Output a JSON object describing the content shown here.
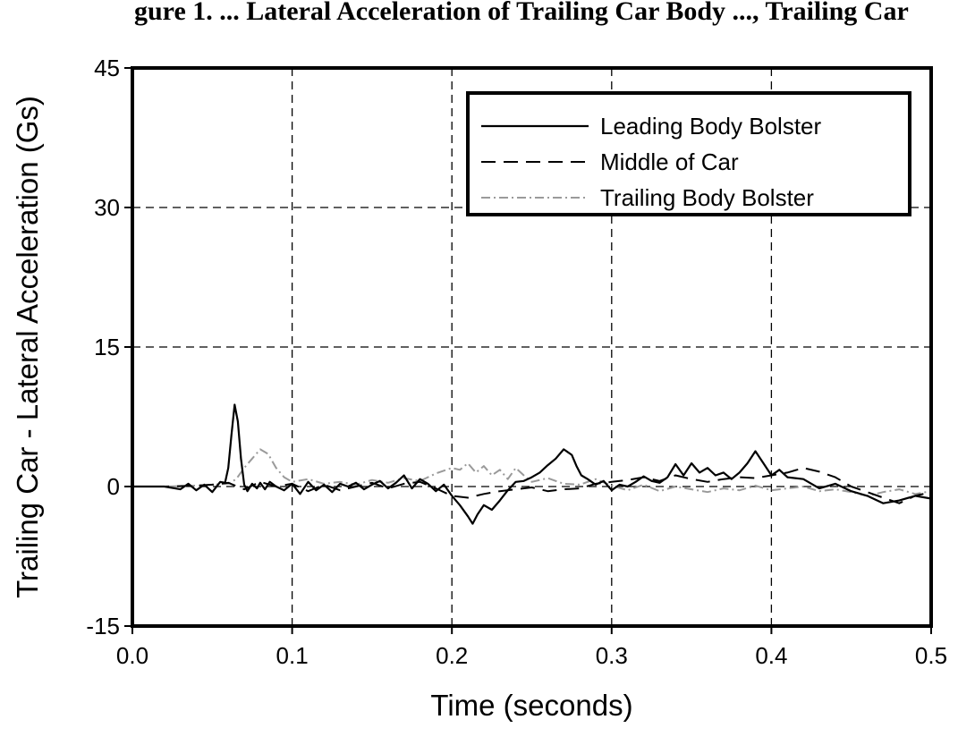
{
  "header_fragment": "gure 1. ... Lateral Acceleration of Trailing Car Body ..., Trailing Car",
  "chart_data": {
    "type": "line",
    "xlabel": "Time (seconds)",
    "ylabel": "Trailing Car - Lateral Acceleration (Gs)",
    "xlim": [
      0,
      0.5
    ],
    "ylim": [
      -15,
      45
    ],
    "xticks": [
      0.0,
      0.1,
      0.2,
      0.3,
      0.4,
      0.5
    ],
    "xtick_labels": [
      "0.0",
      "0.1",
      "0.2",
      "0.3",
      "0.4",
      "0.5"
    ],
    "yticks": [
      -15,
      0,
      15,
      30,
      45
    ],
    "ytick_labels": [
      "-15",
      "0",
      "15",
      "30",
      "45"
    ],
    "grid": "dashed",
    "legend_position": "top-right",
    "series": [
      {
        "name": "Leading Body Bolster",
        "style": "solid",
        "color": "#000000",
        "x": [
          0.0,
          0.02,
          0.03,
          0.035,
          0.04,
          0.045,
          0.05,
          0.055,
          0.058,
          0.06,
          0.062,
          0.064,
          0.066,
          0.068,
          0.07,
          0.072,
          0.075,
          0.078,
          0.08,
          0.083,
          0.086,
          0.09,
          0.095,
          0.1,
          0.105,
          0.11,
          0.115,
          0.12,
          0.125,
          0.13,
          0.135,
          0.14,
          0.145,
          0.15,
          0.155,
          0.16,
          0.165,
          0.17,
          0.175,
          0.18,
          0.185,
          0.19,
          0.195,
          0.2,
          0.205,
          0.21,
          0.213,
          0.216,
          0.22,
          0.225,
          0.23,
          0.235,
          0.24,
          0.245,
          0.25,
          0.255,
          0.26,
          0.265,
          0.27,
          0.275,
          0.278,
          0.281,
          0.285,
          0.29,
          0.295,
          0.3,
          0.305,
          0.31,
          0.315,
          0.32,
          0.325,
          0.33,
          0.335,
          0.34,
          0.345,
          0.35,
          0.355,
          0.36,
          0.365,
          0.37,
          0.375,
          0.38,
          0.385,
          0.39,
          0.395,
          0.4,
          0.405,
          0.41,
          0.42,
          0.43,
          0.44,
          0.45,
          0.46,
          0.47,
          0.48,
          0.49,
          0.5
        ],
        "y": [
          0.0,
          0.0,
          -0.3,
          0.3,
          -0.4,
          0.2,
          -0.6,
          0.5,
          0.4,
          2.0,
          5.5,
          8.8,
          7.0,
          3.0,
          0.2,
          -0.5,
          0.3,
          -0.2,
          0.4,
          -0.3,
          0.5,
          0.0,
          -0.4,
          0.3,
          -0.8,
          0.5,
          -0.4,
          0.2,
          -0.6,
          0.3,
          0.0,
          0.4,
          -0.3,
          0.2,
          0.6,
          -0.2,
          0.4,
          1.2,
          -0.2,
          0.8,
          0.3,
          -0.5,
          0.2,
          -1.0,
          -2.0,
          -3.2,
          -4.0,
          -3.0,
          -2.0,
          -2.5,
          -1.5,
          -0.4,
          0.5,
          0.6,
          1.0,
          1.5,
          2.3,
          3.0,
          4.0,
          3.4,
          2.2,
          1.2,
          0.8,
          0.2,
          0.6,
          -0.4,
          0.2,
          0.0,
          0.5,
          1.1,
          0.6,
          0.4,
          1.0,
          2.4,
          1.2,
          2.5,
          1.5,
          2.0,
          1.2,
          1.5,
          0.8,
          1.5,
          2.5,
          3.8,
          2.5,
          1.2,
          1.8,
          1.0,
          0.8,
          -0.2,
          0.3,
          -0.5,
          -1.0,
          -1.8,
          -1.5,
          -1.0,
          -1.3
        ]
      },
      {
        "name": "Middle of Car",
        "style": "dashed",
        "color": "#000000",
        "x": [
          0.0,
          0.02,
          0.04,
          0.05,
          0.06,
          0.07,
          0.08,
          0.09,
          0.1,
          0.11,
          0.12,
          0.13,
          0.14,
          0.15,
          0.16,
          0.17,
          0.18,
          0.19,
          0.2,
          0.21,
          0.22,
          0.23,
          0.24,
          0.25,
          0.26,
          0.27,
          0.28,
          0.29,
          0.3,
          0.31,
          0.32,
          0.33,
          0.34,
          0.35,
          0.36,
          0.37,
          0.38,
          0.39,
          0.4,
          0.41,
          0.42,
          0.43,
          0.44,
          0.45,
          0.46,
          0.47,
          0.48,
          0.49,
          0.5
        ],
        "y": [
          0.0,
          0.0,
          0.1,
          0.2,
          0.4,
          -0.3,
          0.5,
          0.0,
          0.3,
          -0.5,
          0.2,
          -0.4,
          0.0,
          0.4,
          -0.2,
          0.3,
          0.5,
          -0.2,
          -1.0,
          -1.2,
          -0.8,
          -0.5,
          -0.3,
          -0.1,
          -0.5,
          -0.3,
          -0.2,
          0.3,
          0.5,
          0.7,
          1.0,
          0.6,
          1.2,
          0.8,
          0.5,
          0.8,
          1.0,
          0.9,
          1.2,
          1.5,
          2.0,
          1.6,
          1.0,
          0.0,
          -0.6,
          -1.2,
          -1.8,
          -1.0,
          -0.6
        ]
      },
      {
        "name": "Trailing Body Bolster",
        "style": "dash-dot",
        "color": "#9a9a9a",
        "x": [
          0.0,
          0.02,
          0.04,
          0.05,
          0.06,
          0.065,
          0.07,
          0.075,
          0.08,
          0.085,
          0.09,
          0.095,
          0.1,
          0.11,
          0.12,
          0.13,
          0.14,
          0.15,
          0.16,
          0.17,
          0.18,
          0.19,
          0.2,
          0.205,
          0.21,
          0.215,
          0.22,
          0.225,
          0.23,
          0.235,
          0.24,
          0.245,
          0.25,
          0.26,
          0.27,
          0.28,
          0.29,
          0.3,
          0.31,
          0.32,
          0.33,
          0.34,
          0.35,
          0.36,
          0.37,
          0.38,
          0.39,
          0.4,
          0.41,
          0.42,
          0.43,
          0.44,
          0.45,
          0.46,
          0.47,
          0.48,
          0.49,
          0.5
        ],
        "y": [
          0.0,
          0.0,
          0.1,
          0.2,
          0.3,
          0.8,
          2.0,
          3.0,
          4.0,
          3.5,
          2.0,
          1.0,
          0.5,
          0.8,
          0.3,
          0.5,
          0.2,
          0.7,
          0.4,
          0.9,
          0.6,
          1.4,
          2.0,
          1.8,
          2.5,
          1.5,
          2.2,
          1.2,
          1.8,
          0.8,
          2.0,
          1.2,
          0.5,
          0.9,
          0.3,
          0.2,
          0.8,
          0.1,
          -0.4,
          0.2,
          -0.5,
          0.0,
          -0.3,
          -0.6,
          -0.2,
          -0.4,
          0.1,
          -0.4,
          -0.2,
          0.0,
          -0.5,
          -0.3,
          -0.6,
          -1.0,
          -0.6,
          -0.3,
          -0.8,
          -0.5
        ]
      }
    ]
  }
}
